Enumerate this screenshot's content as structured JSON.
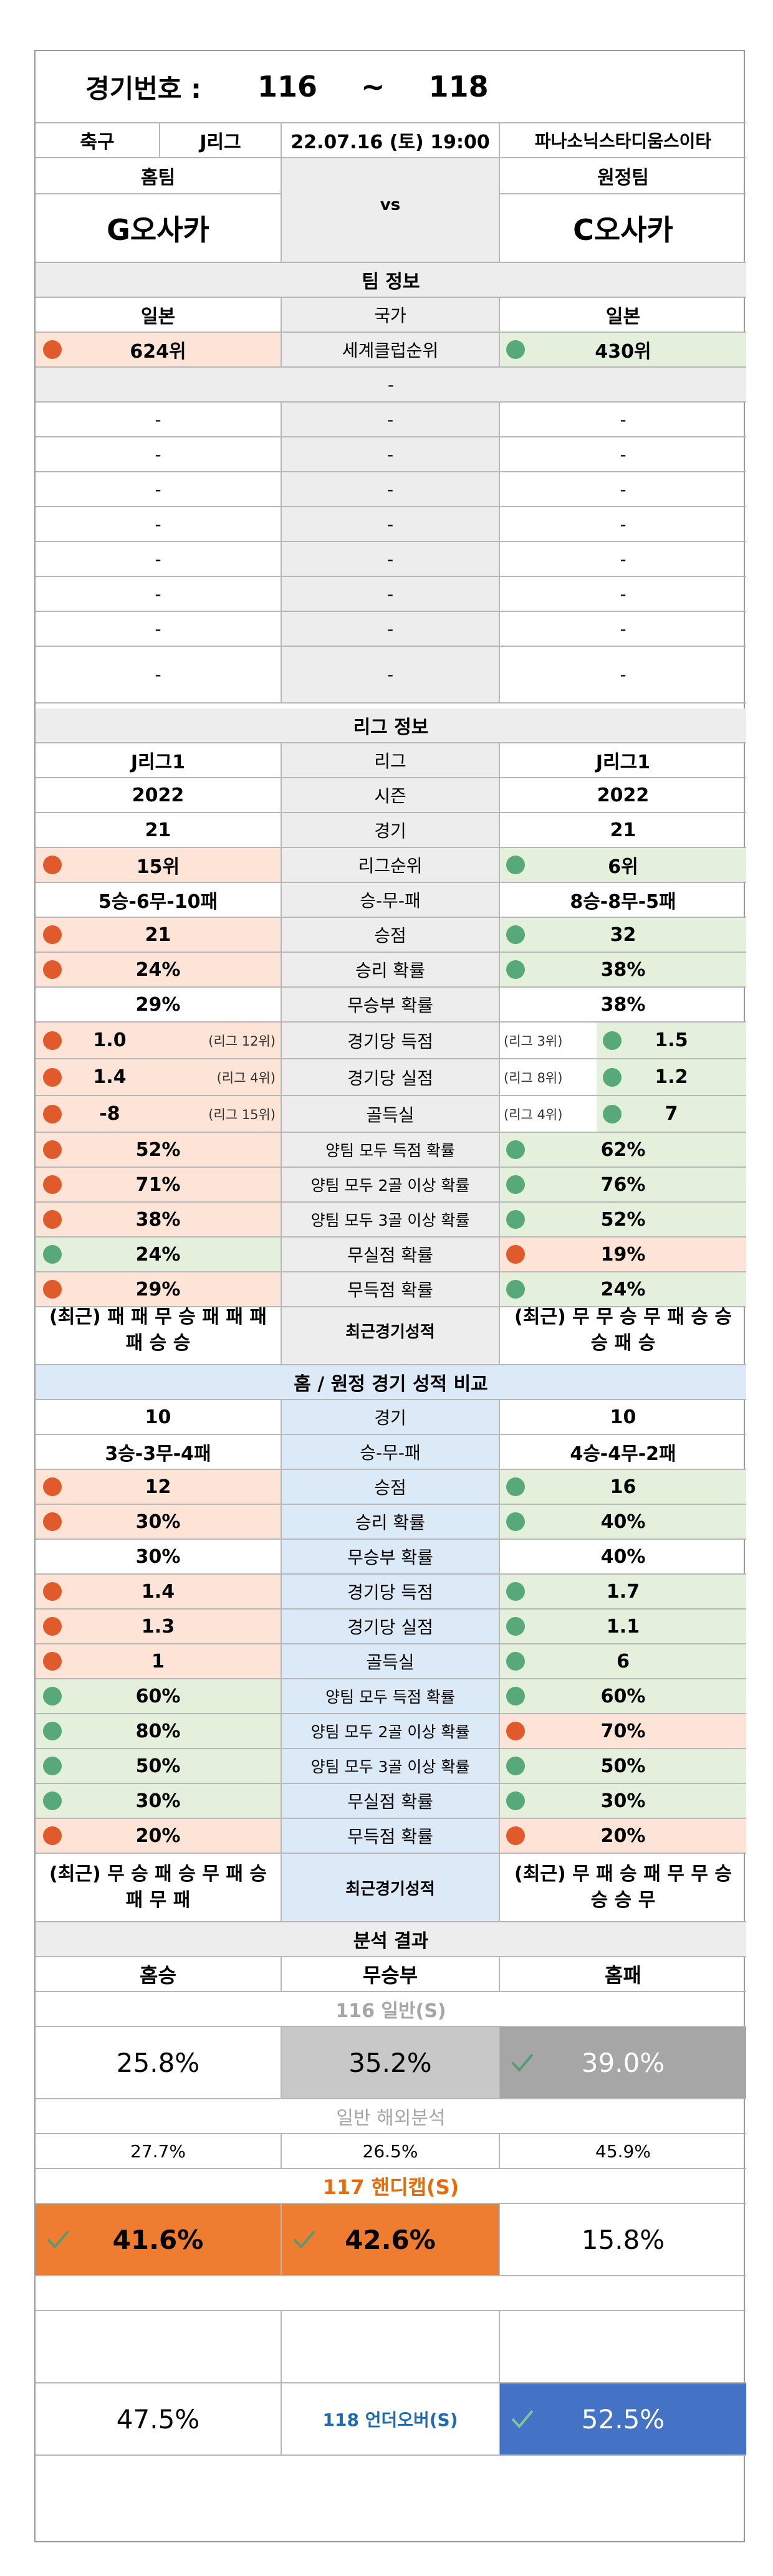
{
  "header": {
    "label": "경기번호 :",
    "from": "116",
    "tilde": "~",
    "to": "118"
  },
  "match": {
    "sport": "축구",
    "league": "J리그",
    "datetime": "22.07.16 (토) 19:00",
    "venue": "파나소닉스타디움스이타"
  },
  "teams": {
    "home_label": "홈팀",
    "away_label": "원정팀",
    "home": "G오사카",
    "vs": "vs",
    "away": "C오사카"
  },
  "team_info": {
    "title": "팀 정보",
    "country": {
      "home": "일본",
      "label": "국가",
      "away": "일본"
    },
    "world_rank": {
      "home": "624위",
      "label": "세계클럽순위",
      "away": "430위"
    },
    "section": "-",
    "dash_rows": [
      [
        "-",
        "-",
        "-"
      ],
      [
        "-",
        "-",
        "-"
      ],
      [
        "-",
        "-",
        "-"
      ],
      [
        "-",
        "-",
        "-"
      ],
      [
        "-",
        "-",
        "-"
      ],
      [
        "-",
        "-",
        "-"
      ],
      [
        "-",
        "-",
        "-"
      ],
      [
        "-",
        "-",
        "-"
      ]
    ]
  },
  "league_info": {
    "title": "리그 정보",
    "rows": [
      {
        "home": "J리그1",
        "label": "리그",
        "away": "J리그1"
      },
      {
        "home": "2022",
        "label": "시즌",
        "away": "2022"
      },
      {
        "home": "21",
        "label": "경기",
        "away": "21"
      },
      {
        "home": "15위",
        "label": "리그순위",
        "away": "6위"
      },
      {
        "home": "5승-6무-10패",
        "label": "승-무-패",
        "away": "8승-8무-5패"
      },
      {
        "home": "21",
        "label": "승점",
        "away": "32"
      },
      {
        "home": "24%",
        "label": "승리 확률",
        "away": "38%"
      },
      {
        "home": "29%",
        "label": "무승부 확률",
        "away": "38%"
      },
      {
        "home": "1.0",
        "home_note": "(리그 12위)",
        "label": "경기당 득점",
        "away_note": "(리그 3위)",
        "away": "1.5"
      },
      {
        "home": "1.4",
        "home_note": "(리그 4위)",
        "label": "경기당 실점",
        "away_note": "(리그 8위)",
        "away": "1.2"
      },
      {
        "home": "-8",
        "home_note": "(리그 15위)",
        "label": "골득실",
        "away_note": "(리그 4위)",
        "away": "7"
      },
      {
        "home": "52%",
        "label": "양팀 모두 득점 확률",
        "away": "62%"
      },
      {
        "home": "71%",
        "label": "양팀 모두 2골 이상 확률",
        "away": "76%"
      },
      {
        "home": "38%",
        "label": "양팀 모두 3골 이상 확률",
        "away": "52%"
      },
      {
        "home": "24%",
        "label": "무실점 확률",
        "away": "19%"
      },
      {
        "home": "29%",
        "label": "무득점 확률",
        "away": "24%"
      }
    ],
    "recent": {
      "home": "(최근) 패 패 무 승 패 패 패 패 승 승",
      "label": "최근경기성적",
      "away": "(최근) 무 무 승 무 패 승 승 승 패 승"
    }
  },
  "home_away": {
    "title": "홈 / 원정 경기 성적 비교",
    "rows": [
      {
        "home": "10",
        "label": "경기",
        "away": "10"
      },
      {
        "home": "3승-3무-4패",
        "label": "승-무-패",
        "away": "4승-4무-2패"
      },
      {
        "home": "12",
        "label": "승점",
        "away": "16"
      },
      {
        "home": "30%",
        "label": "승리 확률",
        "away": "40%"
      },
      {
        "home": "30%",
        "label": "무승부 확률",
        "away": "40%"
      },
      {
        "home": "1.4",
        "label": "경기당 득점",
        "away": "1.7"
      },
      {
        "home": "1.3",
        "label": "경기당 실점",
        "away": "1.1"
      },
      {
        "home": "1",
        "label": "골득실",
        "away": "6"
      },
      {
        "home": "60%",
        "label": "양팀 모두 득점 확률",
        "away": "60%"
      },
      {
        "home": "80%",
        "label": "양팀 모두 2골 이상 확률",
        "away": "70%"
      },
      {
        "home": "50%",
        "label": "양팀 모두 3골 이상 확률",
        "away": "50%"
      },
      {
        "home": "30%",
        "label": "무실점 확률",
        "away": "30%"
      },
      {
        "home": "20%",
        "label": "무득점 확률",
        "away": "20%"
      }
    ],
    "recent": {
      "home": "(최근) 무 승 패 승 무 패 승 패 무 패",
      "label": "최근경기성적",
      "away": "(최근) 무 패 승 패 무 무 승 승 승 무"
    }
  },
  "analysis": {
    "title": "분석 결과",
    "cols": [
      "홈승",
      "무승부",
      "홈패"
    ],
    "general": {
      "title": "116 일반(S)",
      "values": [
        "25.8%",
        "35.2%",
        "39.0%"
      ]
    },
    "overseas": {
      "title": "일반 해외분석",
      "values": [
        "27.7%",
        "26.5%",
        "45.9%"
      ]
    },
    "handicap": {
      "title": "117 핸디캡(S)",
      "values": [
        "41.6%",
        "42.6%",
        "15.8%"
      ]
    },
    "underover": {
      "title": "118 언더오버(S)",
      "values": [
        "47.5%",
        "52.5%"
      ]
    }
  },
  "colors": {
    "home_dot": "#e05a2b",
    "away_dot": "#57a97a",
    "orange": "#ee7d31",
    "blue": "#4472c4"
  },
  "icons": {
    "check": "check-icon"
  }
}
